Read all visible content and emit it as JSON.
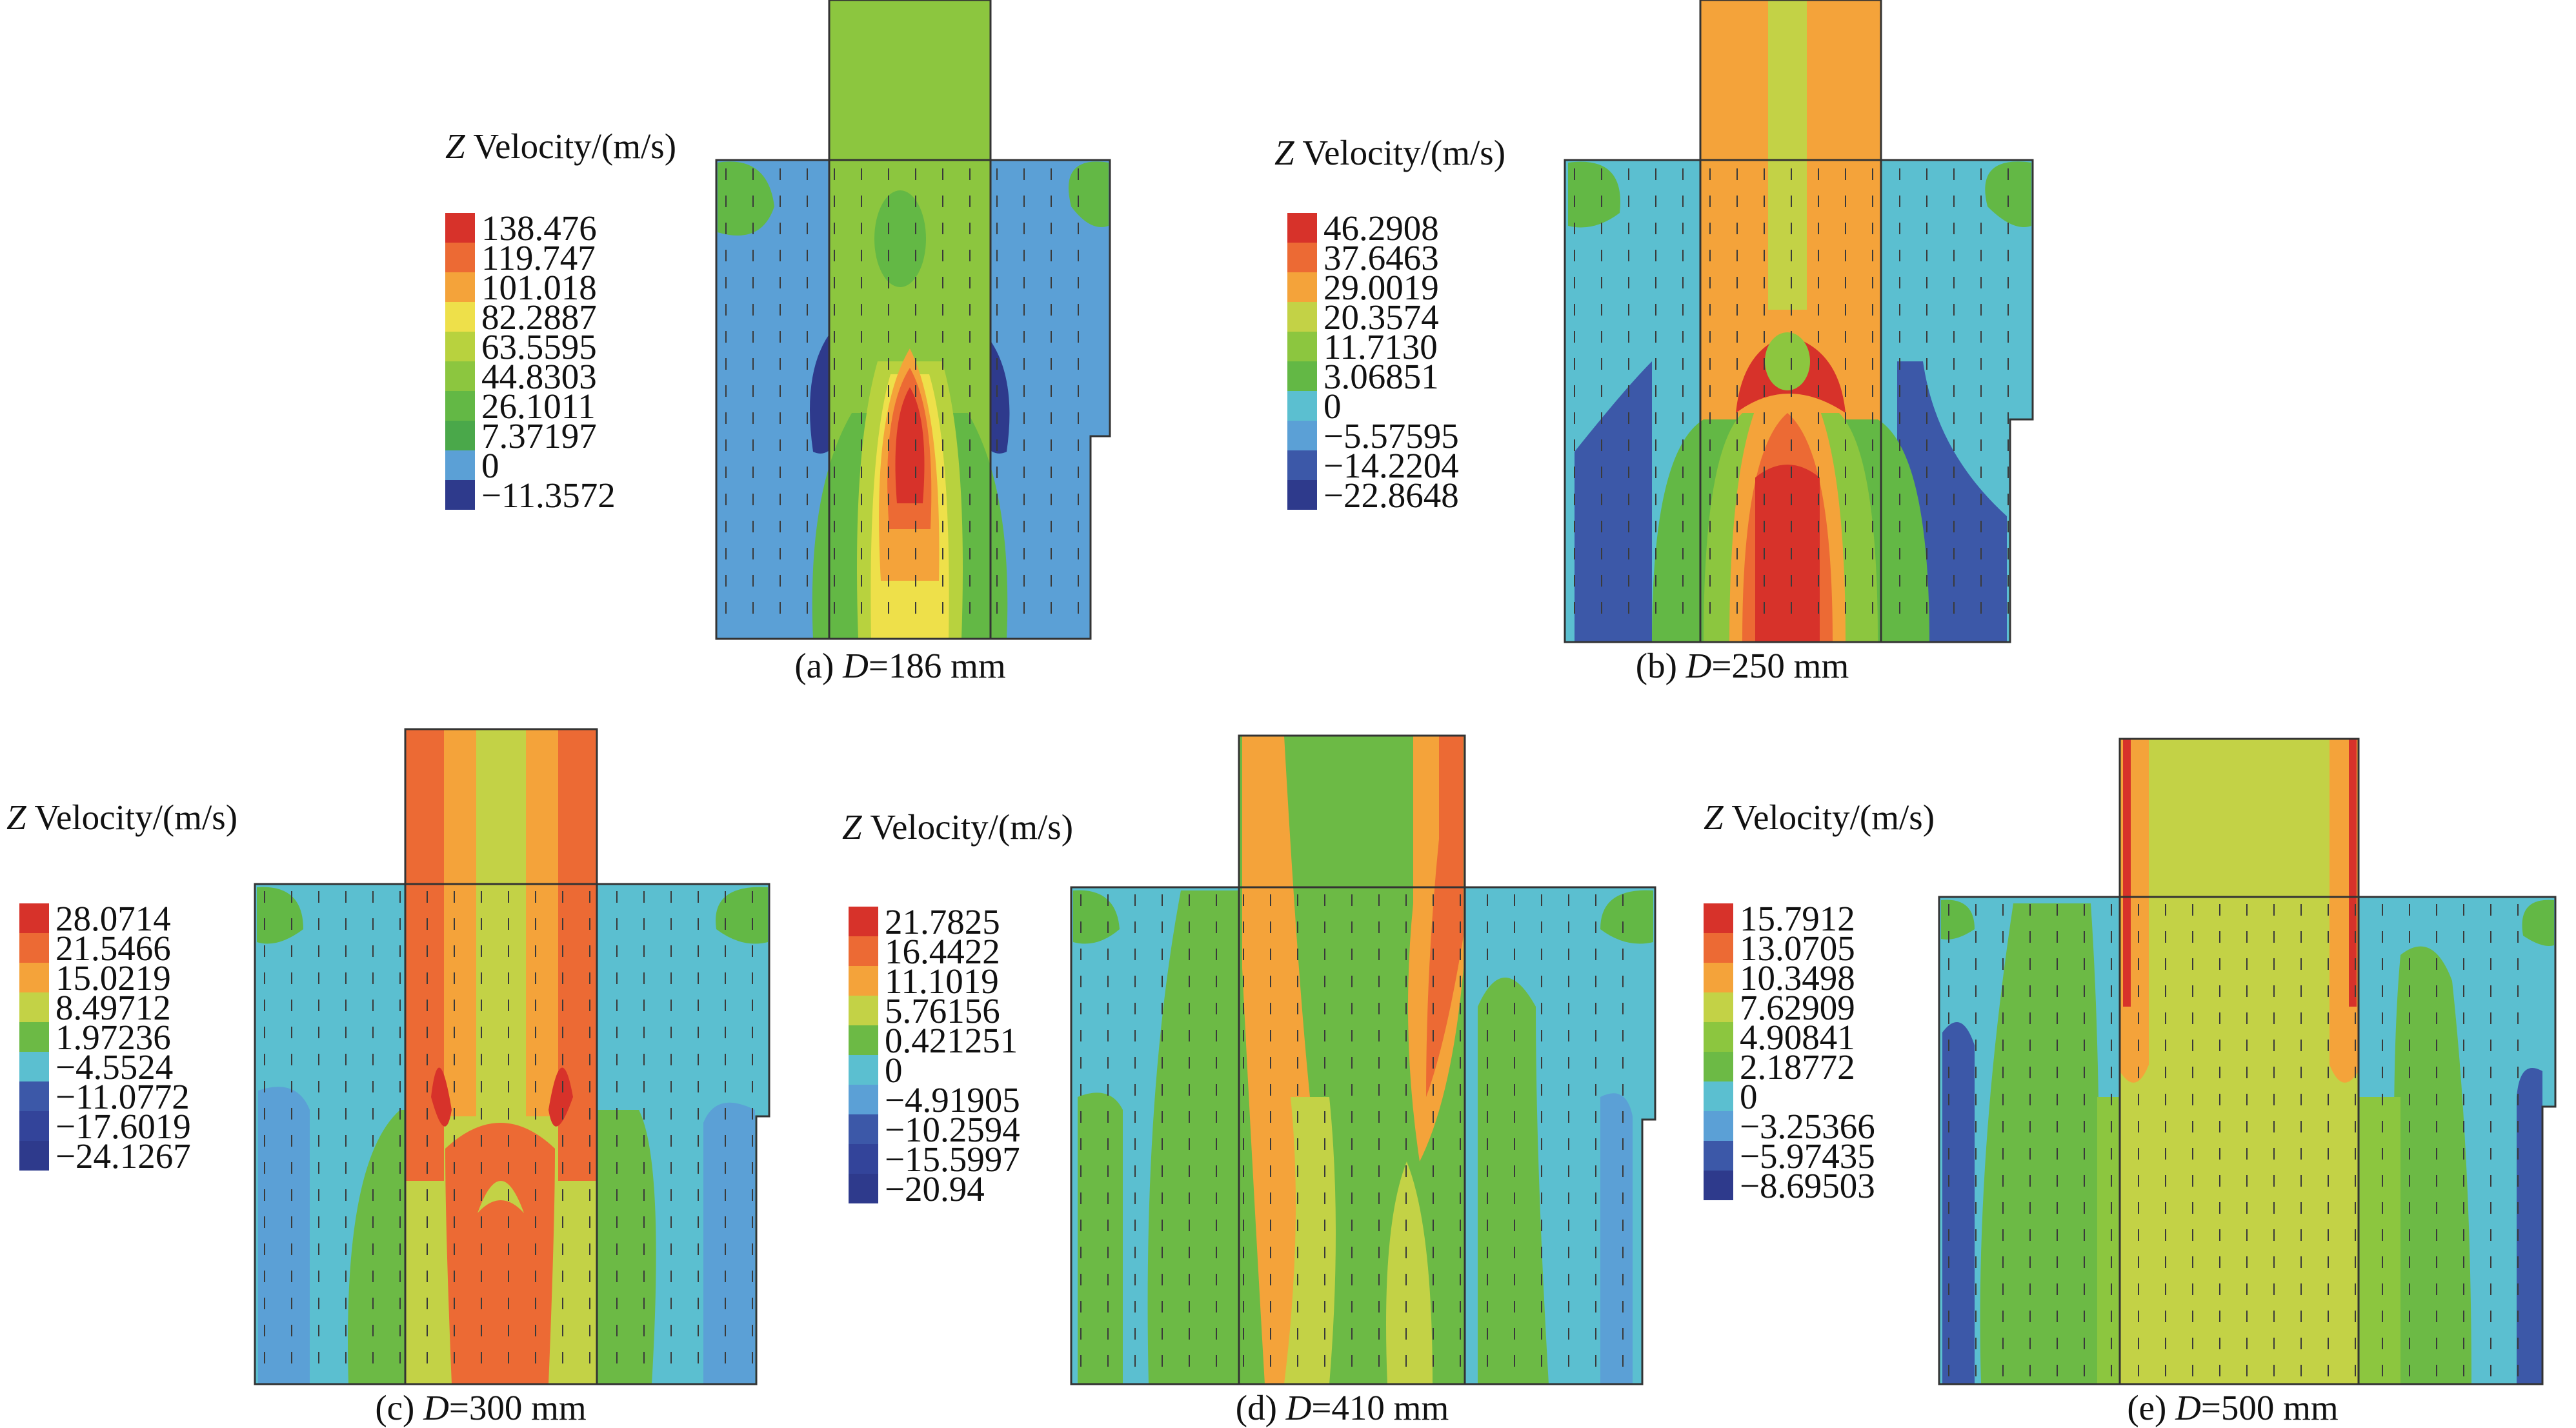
{
  "panels": [
    {
      "id": "a",
      "legend_title": "Velocity/(m/s)",
      "legend_title_var": "Z",
      "legend_values": [
        "138.476",
        "119.747",
        "101.018",
        "82.2887",
        "63.5595",
        "44.8303",
        "26.1011",
        "7.37197",
        "0",
        "−11.3572"
      ],
      "legend_colors": [
        "#d7322a",
        "#ec6a34",
        "#f4a33a",
        "#eee04a",
        "#b8d23e",
        "#8cc63f",
        "#63b845",
        "#4aa84a",
        "#5ba0d6",
        "#2e3a8c"
      ],
      "caption_label": "(a)",
      "caption_var": "D",
      "caption_value": "=186 mm"
    },
    {
      "id": "b",
      "legend_title": "Velocity/(m/s)",
      "legend_title_var": "Z",
      "legend_values": [
        "46.2908",
        "37.6463",
        "29.0019",
        "20.3574",
        "11.7130",
        "3.06851",
        "0",
        "−5.57595",
        "−14.2204",
        "−22.8648"
      ],
      "legend_colors": [
        "#d7322a",
        "#ec6a34",
        "#f4a33a",
        "#c3d246",
        "#8cc63f",
        "#63b845",
        "#5bbfd0",
        "#5ba0d6",
        "#3c58a8",
        "#2e3a8c"
      ],
      "caption_label": "(b)",
      "caption_var": "D",
      "caption_value": "=250 mm"
    },
    {
      "id": "c",
      "legend_title": "Velocity/(m/s)",
      "legend_title_var": "Z",
      "legend_values": [
        "28.0714",
        "21.5466",
        "15.0219",
        "8.49712",
        "1.97236",
        "−4.5524",
        "−11.0772",
        "−17.6019",
        "−24.1267"
      ],
      "legend_colors": [
        "#d7322a",
        "#ec6a34",
        "#f4a33a",
        "#c3d246",
        "#6cba45",
        "#5bbfd0",
        "#3c58a8",
        "#33449a",
        "#2e3a8c"
      ],
      "caption_label": "(c)",
      "caption_var": "D",
      "caption_value": "=300 mm"
    },
    {
      "id": "d",
      "legend_title": "Velocity/(m/s)",
      "legend_title_var": "Z",
      "legend_values": [
        "21.7825",
        "16.4422",
        "11.1019",
        "5.76156",
        "0.421251",
        "0",
        "−4.91905",
        "−10.2594",
        "−15.5997",
        "−20.94"
      ],
      "legend_colors": [
        "#d7322a",
        "#ec6a34",
        "#f4a33a",
        "#c3d246",
        "#6cba45",
        "#5bbfd0",
        "#5ba0d6",
        "#3c58a8",
        "#33449a",
        "#2e3a8c"
      ],
      "caption_label": "(d)",
      "caption_var": "D",
      "caption_value": "=410 mm"
    },
    {
      "id": "e",
      "legend_title": "Velocity/(m/s)",
      "legend_title_var": "Z",
      "legend_values": [
        "15.7912",
        "13.0705",
        "10.3498",
        "7.62909",
        "4.90841",
        "2.18772",
        "0",
        "−3.25366",
        "−5.97435",
        "−8.69503"
      ],
      "legend_colors": [
        "#d7322a",
        "#ec6a34",
        "#f4a33a",
        "#c3d246",
        "#8cc63f",
        "#6cba45",
        "#5bbfd0",
        "#5ba0d6",
        "#3c58a8",
        "#2e3a8c"
      ],
      "caption_label": "(e)",
      "caption_var": "D",
      "caption_value": "=500 mm"
    }
  ]
}
